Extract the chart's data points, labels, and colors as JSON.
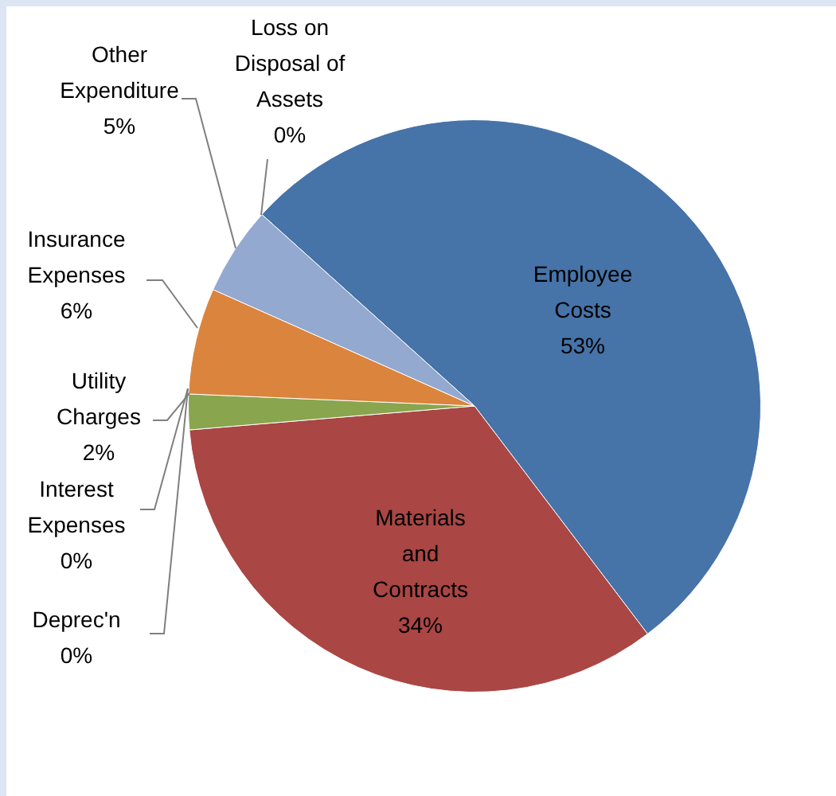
{
  "chart_data": {
    "type": "pie",
    "categories": [
      "Employee Costs",
      "Materials and Contracts",
      "Deprec'n",
      "Interest Expenses",
      "Utility Charges",
      "Insurance Expenses",
      "Other Expenditure",
      "Loss on Disposal of Assets"
    ],
    "values": [
      53,
      34,
      0,
      0,
      2,
      6,
      5,
      0
    ],
    "value_labels": [
      "53%",
      "34%",
      "0%",
      "0%",
      "2%",
      "6%",
      "5%",
      "0%"
    ],
    "colors": [
      "#4673a8",
      "#aa4644",
      "#71588f",
      "#4198af",
      "#89a54e",
      "#db843d",
      "#93a9cf",
      "#d19392"
    ],
    "legend": false
  }
}
